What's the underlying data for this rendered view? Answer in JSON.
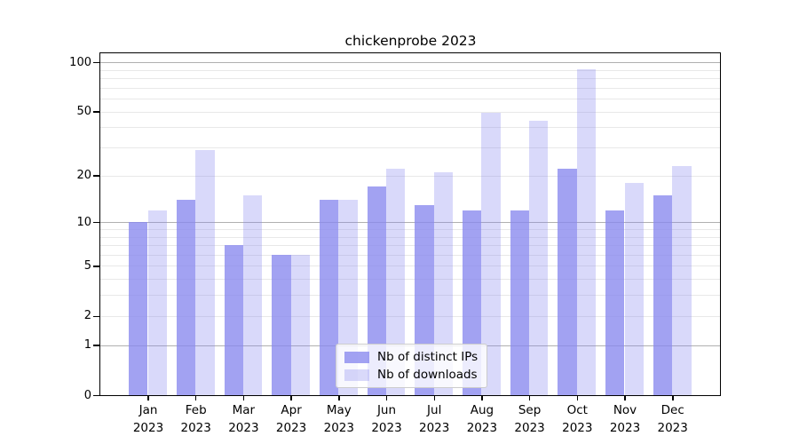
{
  "chart_data": {
    "type": "bar",
    "title": "chickenprobe 2023",
    "y_scale": "log10(value+1)",
    "y_ticks": [
      0,
      1,
      2,
      5,
      10,
      20,
      50,
      100
    ],
    "ylim": [
      0,
      113
    ],
    "grid": {
      "major_values": [
        1,
        10,
        100
      ],
      "minor_values": [
        2,
        3,
        4,
        5,
        6,
        7,
        8,
        9,
        20,
        30,
        40,
        50,
        60,
        70,
        80,
        90
      ]
    },
    "legend_position": "lower center",
    "months": [
      {
        "m": "Jan",
        "y": "2023"
      },
      {
        "m": "Feb",
        "y": "2023"
      },
      {
        "m": "Mar",
        "y": "2023"
      },
      {
        "m": "Apr",
        "y": "2023"
      },
      {
        "m": "May",
        "y": "2023"
      },
      {
        "m": "Jun",
        "y": "2023"
      },
      {
        "m": "Jul",
        "y": "2023"
      },
      {
        "m": "Aug",
        "y": "2023"
      },
      {
        "m": "Sep",
        "y": "2023"
      },
      {
        "m": "Oct",
        "y": "2023"
      },
      {
        "m": "Nov",
        "y": "2023"
      },
      {
        "m": "Dec",
        "y": "2023"
      }
    ],
    "series": [
      {
        "name": "Nb of distinct IPs",
        "color": "rgba(136,136,238,0.78)",
        "values": [
          10,
          14,
          7,
          6,
          14,
          17,
          13,
          12,
          12,
          22,
          12,
          15
        ]
      },
      {
        "name": "Nb of downloads",
        "color": "rgba(136,136,238,0.32)",
        "values": [
          12,
          29,
          15,
          6,
          14,
          22,
          21,
          49,
          44,
          91,
          18,
          23
        ]
      }
    ]
  },
  "colors": {
    "accent_base": "#8888ee",
    "grid_major": "#b0b0b0",
    "grid_minor": "#e8e8e8",
    "spine": "#000000",
    "background": "#ffffff"
  }
}
